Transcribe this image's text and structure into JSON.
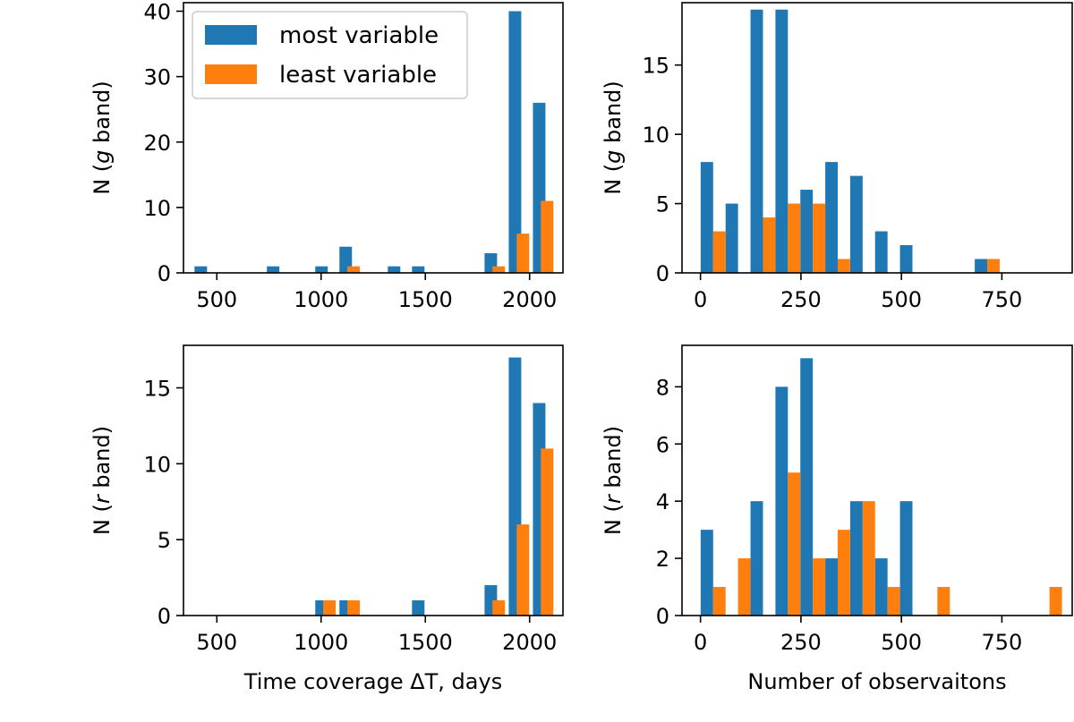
{
  "colors": {
    "most": "#1f77b4",
    "least": "#ff7f0e"
  },
  "legend": {
    "most": "most variable",
    "least": "least variable"
  },
  "chart_data": [
    {
      "id": "gT",
      "type": "bar",
      "ylabel_prefix": "N (",
      "ylabel_italic": "g",
      "ylabel_suffix": " band)",
      "xlabel": "",
      "xlim": [
        340,
        2160
      ],
      "ylim": [
        0,
        41.3
      ],
      "xticks": [
        500,
        1000,
        1500,
        2000
      ],
      "yticks": [
        0,
        10,
        20,
        30,
        40
      ],
      "bin_width": 60,
      "series": [
        {
          "name": "most variable",
          "key": "most",
          "points": [
            [
              423,
              1
            ],
            [
              770,
              1
            ],
            [
              1002,
              1
            ],
            [
              1118,
              4
            ],
            [
              1350,
              1
            ],
            [
              1466,
              1
            ],
            [
              1814,
              3
            ],
            [
              1930,
              40
            ],
            [
              2046,
              26
            ]
          ]
        },
        {
          "name": "least variable",
          "key": "least",
          "points": [
            [
              1156,
              1
            ],
            [
              1852,
              1
            ],
            [
              1968,
              6
            ],
            [
              2084,
              11
            ]
          ]
        }
      ],
      "legend": true
    },
    {
      "id": "gN",
      "type": "bar",
      "ylabel_prefix": "N (",
      "ylabel_italic": "g",
      "ylabel_suffix": " band)",
      "xlabel": "",
      "xlim": [
        -46,
        925
      ],
      "ylim": [
        0,
        19.5
      ],
      "xticks": [
        0,
        250,
        500,
        750
      ],
      "yticks": [
        0,
        5,
        10,
        15
      ],
      "bin_width": 31,
      "series": [
        {
          "name": "most variable",
          "key": "most",
          "points": [
            [
              16,
              8
            ],
            [
              78,
              5
            ],
            [
              140,
              19
            ],
            [
              202,
              19
            ],
            [
              264,
              6
            ],
            [
              326,
              8
            ],
            [
              388,
              7
            ],
            [
              450,
              3
            ],
            [
              512,
              2
            ],
            [
              698,
              1
            ]
          ]
        },
        {
          "name": "least variable",
          "key": "least",
          "points": [
            [
              47,
              3
            ],
            [
              171,
              4
            ],
            [
              233,
              5
            ],
            [
              295,
              5
            ],
            [
              357,
              1
            ],
            [
              729,
              1
            ]
          ]
        }
      ]
    },
    {
      "id": "rT",
      "type": "bar",
      "ylabel_prefix": "N (",
      "ylabel_italic": "r",
      "ylabel_suffix": " band)",
      "xlabel": "Time coverage ΔT, days",
      "xlim": [
        340,
        2160
      ],
      "ylim": [
        0,
        17.8
      ],
      "xticks": [
        500,
        1000,
        1500,
        2000
      ],
      "yticks": [
        0,
        5,
        10,
        15
      ],
      "bin_width": 60,
      "series": [
        {
          "name": "most variable",
          "key": "most",
          "points": [
            [
              1002,
              1
            ],
            [
              1118,
              1
            ],
            [
              1466,
              1
            ],
            [
              1814,
              2
            ],
            [
              1930,
              17
            ],
            [
              2046,
              14
            ]
          ]
        },
        {
          "name": "least variable",
          "key": "least",
          "points": [
            [
              1040,
              1
            ],
            [
              1156,
              1
            ],
            [
              1852,
              1
            ],
            [
              1968,
              6
            ],
            [
              2084,
              11
            ]
          ]
        }
      ]
    },
    {
      "id": "rN",
      "type": "bar",
      "ylabel_prefix": "N (",
      "ylabel_italic": "r",
      "ylabel_suffix": " band)",
      "xlabel": "Number of observaitons",
      "xlim": [
        -46,
        925
      ],
      "ylim": [
        0,
        9.45
      ],
      "xticks": [
        0,
        250,
        500,
        750
      ],
      "yticks": [
        0,
        2,
        4,
        6,
        8
      ],
      "bin_width": 31,
      "series": [
        {
          "name": "most variable",
          "key": "most",
          "points": [
            [
              16,
              3
            ],
            [
              140,
              4
            ],
            [
              202,
              8
            ],
            [
              264,
              9
            ],
            [
              326,
              2
            ],
            [
              388,
              4
            ],
            [
              450,
              2
            ],
            [
              512,
              4
            ]
          ]
        },
        {
          "name": "least variable",
          "key": "least",
          "points": [
            [
              47,
              1
            ],
            [
              109,
              2
            ],
            [
              233,
              5
            ],
            [
              295,
              2
            ],
            [
              357,
              3
            ],
            [
              419,
              4
            ],
            [
              481,
              1
            ],
            [
              605,
              1
            ],
            [
              884,
              1
            ]
          ]
        }
      ]
    }
  ]
}
